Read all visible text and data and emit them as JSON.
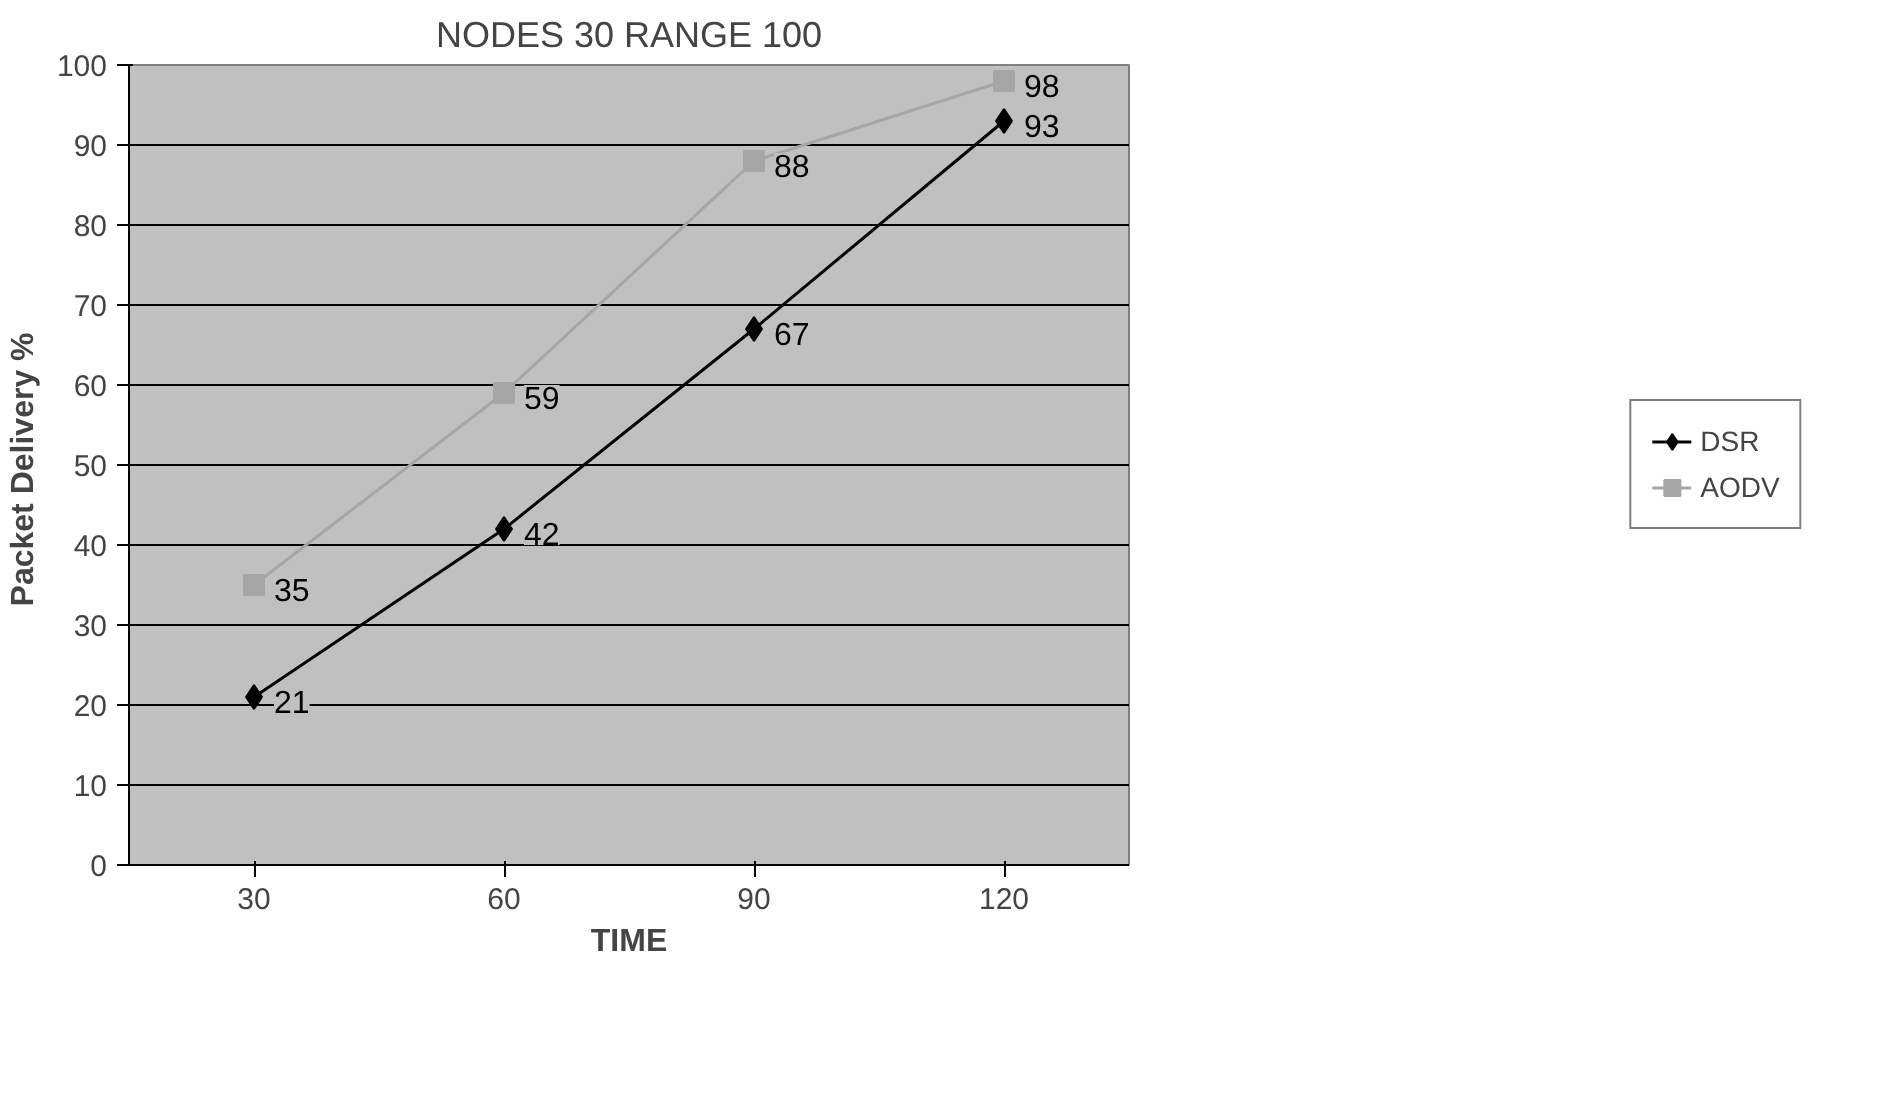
{
  "chart_data": {
    "type": "line",
    "title": "NODES 30 RANGE 100",
    "xlabel": "TIME",
    "ylabel": "Packet Delivery  %",
    "categories": [
      "30",
      "60",
      "90",
      "120"
    ],
    "series": [
      {
        "name": "DSR",
        "color": "#000000",
        "marker": "diamond",
        "values": [
          21,
          42,
          67,
          93
        ]
      },
      {
        "name": "AODV",
        "color": "#a6a6a6",
        "marker": "square",
        "values": [
          35,
          59,
          88,
          98
        ]
      }
    ],
    "ylim": [
      0,
      100
    ],
    "yticks": [
      0,
      10,
      20,
      30,
      40,
      50,
      60,
      70,
      80,
      90,
      100
    ],
    "grid": "y",
    "legend": "right",
    "data_labels": true
  }
}
